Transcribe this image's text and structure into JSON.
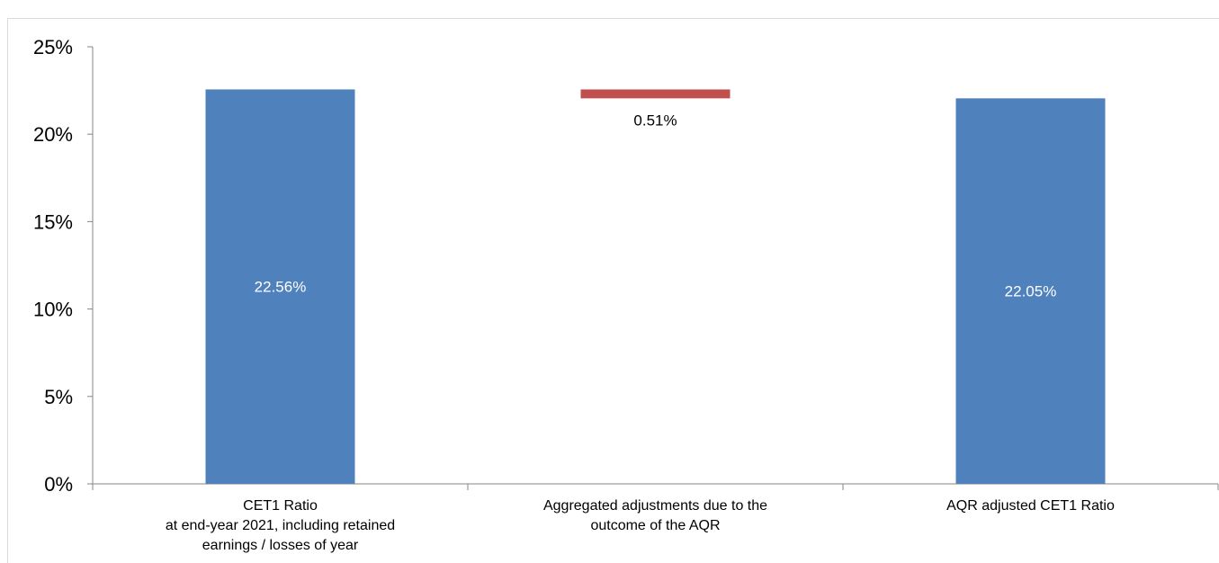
{
  "chart_data": {
    "type": "bar",
    "subtype": "waterfall",
    "title": "",
    "xlabel": "",
    "ylabel": "",
    "ylim": [
      0,
      25
    ],
    "y_ticks": [
      "0%",
      "5%",
      "10%",
      "15%",
      "20%",
      "25%"
    ],
    "grid": false,
    "legend": "none",
    "categories": [
      [
        "CET1 Ratio",
        "at end-year 2021, including retained",
        "earnings / losses of year"
      ],
      [
        "Aggregated adjustments due to the",
        "outcome of the AQR"
      ],
      [
        "AQR adjusted CET1 Ratio"
      ]
    ],
    "bars": [
      {
        "base": 0,
        "value": 22.56,
        "label": "22.56%",
        "color": "#4f81bd",
        "label_color": "#ffffff"
      },
      {
        "base": 22.05,
        "value": 0.51,
        "label": "0.51%",
        "color": "#c0504d",
        "label_color": "#000000"
      },
      {
        "base": 0,
        "value": 22.05,
        "label": "22.05%",
        "color": "#4f81bd",
        "label_color": "#ffffff"
      }
    ]
  }
}
